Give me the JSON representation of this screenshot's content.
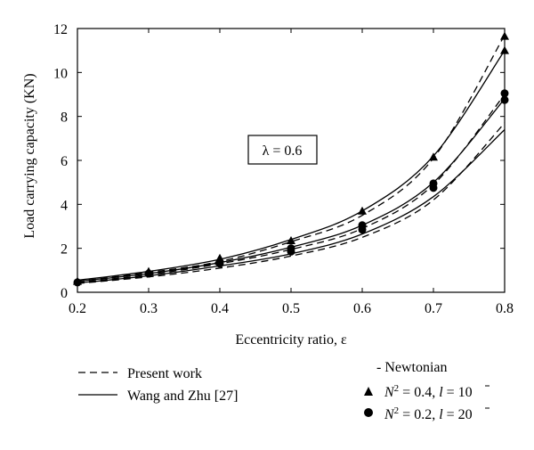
{
  "chart_data": {
    "type": "line",
    "xlabel": "Eccentricity ratio, ε",
    "ylabel": "Load carrying capacity (KN)",
    "xlim": [
      0.2,
      0.8
    ],
    "ylim": [
      0,
      12
    ],
    "xticks": [
      "0.2",
      "0.3",
      "0.4",
      "0.5",
      "0.6",
      "0.7",
      "0.8"
    ],
    "yticks": [
      "0",
      "2",
      "4",
      "6",
      "8",
      "10",
      "12"
    ],
    "annotation": "λ = 0.6",
    "x": [
      0.2,
      0.3,
      0.4,
      0.5,
      0.6,
      0.7,
      0.8
    ],
    "series": [
      {
        "name": "Present work",
        "style": "dashed",
        "group": "triangle",
        "values": [
          0.5,
          0.9,
          1.4,
          2.3,
          3.5,
          6.1,
          11.7
        ]
      },
      {
        "name": "Wang and Zhu [27]",
        "style": "solid",
        "group": "triangle",
        "values": [
          0.55,
          0.95,
          1.5,
          2.4,
          3.7,
          6.2,
          11.0
        ]
      },
      {
        "style": "dashed",
        "group": "circle",
        "values": [
          0.45,
          0.8,
          1.3,
          1.95,
          2.9,
          4.9,
          9.0
        ]
      },
      {
        "style": "solid",
        "group": "circle",
        "values": [
          0.5,
          0.85,
          1.35,
          2.05,
          3.05,
          5.0,
          8.8
        ]
      },
      {
        "name": "Newtonian",
        "style": "dashed",
        "group": "none",
        "values": [
          0.4,
          0.7,
          1.1,
          1.65,
          2.5,
          4.2,
          7.7
        ]
      },
      {
        "style": "solid",
        "group": "none",
        "values": [
          0.42,
          0.75,
          1.2,
          1.75,
          2.65,
          4.35,
          7.4
        ]
      }
    ],
    "markers": {
      "triangle": {
        "label_prefix": "N",
        "label_sup": "2",
        "label_mid": " = 0.4, ",
        "label_lbar": "l",
        "label_suffix": " = 10",
        "points": [
          [
            0.2,
            0.5
          ],
          [
            0.3,
            0.95
          ],
          [
            0.4,
            1.55
          ],
          [
            0.5,
            2.35
          ],
          [
            0.6,
            3.7
          ],
          [
            0.7,
            6.15
          ],
          [
            0.8,
            11.65
          ],
          [
            0.8,
            11.0
          ]
        ]
      },
      "circle": {
        "label_prefix": "N",
        "label_sup": "2",
        "label_mid": " = 0.2, ",
        "label_lbar": "l",
        "label_suffix": " = 20",
        "points": [
          [
            0.2,
            0.45
          ],
          [
            0.3,
            0.85
          ],
          [
            0.4,
            1.3
          ],
          [
            0.5,
            1.85
          ],
          [
            0.5,
            2.0
          ],
          [
            0.6,
            2.85
          ],
          [
            0.6,
            3.05
          ],
          [
            0.7,
            4.75
          ],
          [
            0.7,
            4.95
          ],
          [
            0.8,
            9.05
          ],
          [
            0.8,
            8.75
          ]
        ]
      }
    },
    "legend": {
      "dashed_label": "Present work",
      "solid_label": "Wang and Zhu [27]",
      "newtonian_label": "- Newtonian"
    }
  }
}
